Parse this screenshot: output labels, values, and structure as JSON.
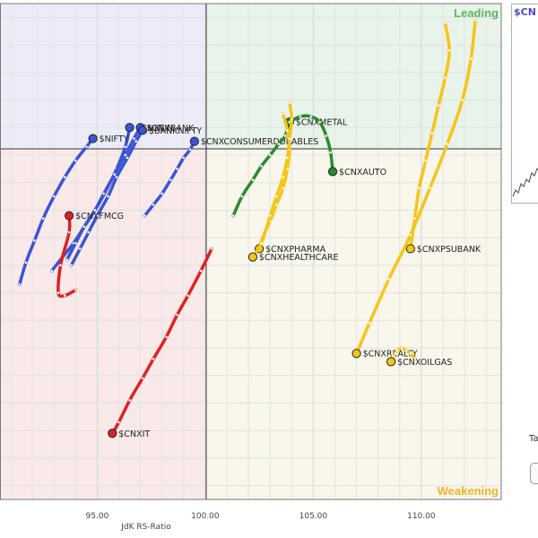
{
  "quadrants": {
    "leading": "Leading",
    "weakening": "Weakening",
    "colors": {
      "improving": "#ececf8",
      "leading": "#e8f3ea",
      "lagging": "#f9e9e9",
      "weakening": "#f9f6ec",
      "leading_text": "#5cb85c",
      "weakening_text": "#f0b429"
    }
  },
  "chart_data": {
    "type": "scatter",
    "subtype": "relative-rotation-graph",
    "xlabel": "JdK RS-Ratio",
    "ylabel": "",
    "x_ticks": [
      "95.00",
      "100.00",
      "105.00",
      "110.00"
    ],
    "x_tick_values": [
      95,
      100,
      105,
      110
    ],
    "xlim": [
      90.5,
      113.7
    ],
    "ylim": [
      86.5,
      104.5
    ],
    "center": [
      100,
      100
    ],
    "grid": true,
    "series": [
      {
        "name": "$CNXFIN",
        "color": "#3a55d4",
        "label_side": "right",
        "x": [
          92.9,
          93.4,
          93.9,
          94.4,
          94.9,
          95.4,
          95.9,
          96.3,
          96.5
        ],
        "y": [
          94.8,
          95.3,
          95.8,
          96.4,
          97.0,
          97.7,
          98.5,
          99.3,
          100.0
        ]
      },
      {
        "name": "$CNXBANK",
        "color": "#3a55d4",
        "label_side": "right",
        "x": [
          93.6,
          94.0,
          94.4,
          94.9,
          95.3,
          95.8,
          96.3,
          96.7,
          97.0
        ],
        "y": [
          95.2,
          95.8,
          96.4,
          97.0,
          97.6,
          98.3,
          99.0,
          99.6,
          100.0
        ]
      },
      {
        "name": "$BANKNIFTY",
        "color": "#3a55d4",
        "label_side": "right",
        "x": [
          93.8,
          94.2,
          94.6,
          95.0,
          95.5,
          95.9,
          96.4,
          96.8,
          97.1
        ],
        "y": [
          95.0,
          95.6,
          96.2,
          96.8,
          97.5,
          98.2,
          98.9,
          99.5,
          99.9
        ]
      },
      {
        "name": "$NIFTY",
        "color": "#3a55d4",
        "label_side": "right",
        "x": [
          91.4,
          91.7,
          92.1,
          92.5,
          93.0,
          93.5,
          94.0,
          94.5,
          94.8
        ],
        "y": [
          94.3,
          95.1,
          95.9,
          96.7,
          97.5,
          98.2,
          98.8,
          99.3,
          99.6
        ]
      },
      {
        "name": "$CNXCONSUMERDURABLES",
        "color": "#3a55d4",
        "label_side": "right",
        "x": [
          97.2,
          97.6,
          98.0,
          98.4,
          98.7,
          99.0,
          99.3,
          99.5
        ],
        "y": [
          96.8,
          97.2,
          97.6,
          98.1,
          98.5,
          98.9,
          99.2,
          99.5
        ]
      },
      {
        "name": "$CNXMETAL",
        "color": "#2a8a2a",
        "label_side": "right",
        "x": [
          101.3,
          101.7,
          102.2,
          102.6,
          103.0,
          103.4,
          103.7,
          103.9
        ],
        "y": [
          96.8,
          97.5,
          98.1,
          98.6,
          99.0,
          99.4,
          99.7,
          100.2
        ]
      },
      {
        "name": "$CNXAUTO",
        "color": "#2a8a2a",
        "label_side": "right",
        "x": [
          103.9,
          104.4,
          104.9,
          105.3,
          105.6,
          105.8,
          105.9
        ],
        "y": [
          100.2,
          100.4,
          100.4,
          100.2,
          99.7,
          99.1,
          98.4
        ]
      },
      {
        "name": "$CNXPHARMA",
        "color": "#f5c518",
        "label_side": "right",
        "x": [
          103.6,
          103.8,
          103.9,
          103.8,
          103.6,
          103.3,
          103.0,
          102.7,
          102.5
        ],
        "y": [
          100.5,
          99.9,
          99.2,
          98.5,
          97.8,
          97.2,
          96.6,
          96.1,
          95.6
        ]
      },
      {
        "name": "$CNXHEALTHCARE",
        "color": "#f5c518",
        "label_side": "right",
        "x": [
          103.9,
          104.0,
          103.9,
          103.8,
          103.6,
          103.3,
          103.0,
          102.6,
          102.2
        ],
        "y": [
          100.9,
          100.3,
          99.6,
          98.9,
          98.2,
          97.5,
          96.8,
          95.8,
          95.3
        ]
      },
      {
        "name": "$CNXPSUBANK",
        "color": "#f5c518",
        "label_side": "right",
        "x": [
          111.1,
          111.3,
          111.1,
          110.8,
          110.5,
          110.2,
          109.9,
          109.7,
          109.5
        ],
        "y": [
          103.8,
          102.8,
          101.8,
          100.8,
          99.8,
          98.8,
          97.8,
          96.7,
          95.6
        ]
      },
      {
        "name": "$CNXREALTY",
        "color": "#f5c518",
        "label_side": "right",
        "x": [
          112.5,
          112.3,
          111.9,
          111.2,
          110.4,
          109.5,
          108.5,
          107.6,
          107.0
        ],
        "y": [
          103.9,
          102.5,
          101.0,
          99.4,
          97.8,
          96.1,
          94.5,
          92.9,
          91.8
        ]
      },
      {
        "name": "$CNXOILGAS",
        "color": "#f5c518",
        "label_side": "right",
        "x": [
          109.7,
          109.5,
          109.3,
          109.1,
          108.9,
          108.8,
          108.7,
          108.6
        ],
        "y": [
          91.6,
          91.8,
          91.9,
          92.0,
          91.9,
          91.8,
          91.7,
          91.5
        ]
      },
      {
        "name": "$CNXFMCG",
        "color": "#e02020",
        "label_side": "right",
        "x": [
          94.0,
          93.5,
          93.2,
          93.3,
          93.7,
          93.7
        ],
        "y": [
          94.1,
          93.9,
          94.0,
          95.0,
          96.2,
          96.8
        ]
      },
      {
        "name": "$CNXIT",
        "color": "#e02020",
        "label_side": "right",
        "x": [
          100.3,
          99.8,
          99.2,
          98.7,
          98.2,
          97.6,
          97.1,
          96.5,
          96.0,
          95.7
        ],
        "y": [
          95.6,
          94.8,
          93.9,
          93.2,
          92.4,
          91.6,
          90.9,
          90.1,
          89.3,
          88.9
        ]
      }
    ]
  },
  "side_panel": {
    "title": "$CN",
    "label": "Ta"
  }
}
